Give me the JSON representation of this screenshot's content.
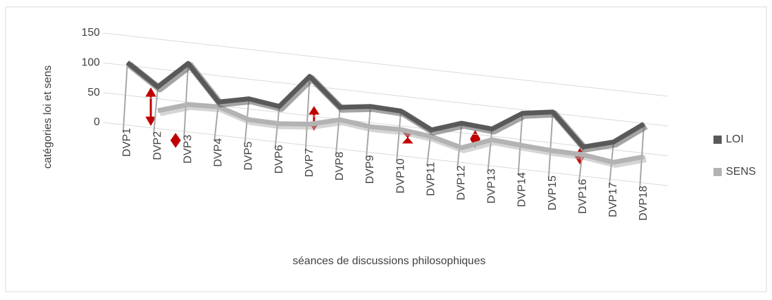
{
  "chart_data": {
    "type": "line",
    "y_label": "catégories  loi et sens",
    "x_label": "séances de discussions philosophiques",
    "categories": [
      "DVP1",
      "DVP2",
      "DVP3",
      "DVP4",
      "DVP5",
      "DVP6",
      "DVP7",
      "DVP8",
      "DVP9",
      "DVP10",
      "DVP11",
      "DVP12",
      "DVP13",
      "DVP14",
      "DVP15",
      "DVP16",
      "DVP17",
      "DVP18"
    ],
    "series": [
      {
        "name": "LOI",
        "color": "#595959",
        "values": [
          105,
          70,
          115,
          56,
          67,
          60,
          116,
          70,
          77,
          75,
          49,
          66,
          62,
          94,
          102,
          49,
          63,
          99
        ]
      },
      {
        "name": "SENS",
        "color": "#b3b3b3",
        "values": [
          null,
          30,
          46,
          48,
          32,
          31,
          36,
          49,
          43,
          44,
          38,
          25,
          44,
          40,
          37,
          36,
          29,
          44
        ]
      }
    ],
    "ylim": [
      0,
      150
    ],
    "yticks": [
      0,
      50,
      100,
      150
    ],
    "grid": true,
    "legend": "right"
  }
}
